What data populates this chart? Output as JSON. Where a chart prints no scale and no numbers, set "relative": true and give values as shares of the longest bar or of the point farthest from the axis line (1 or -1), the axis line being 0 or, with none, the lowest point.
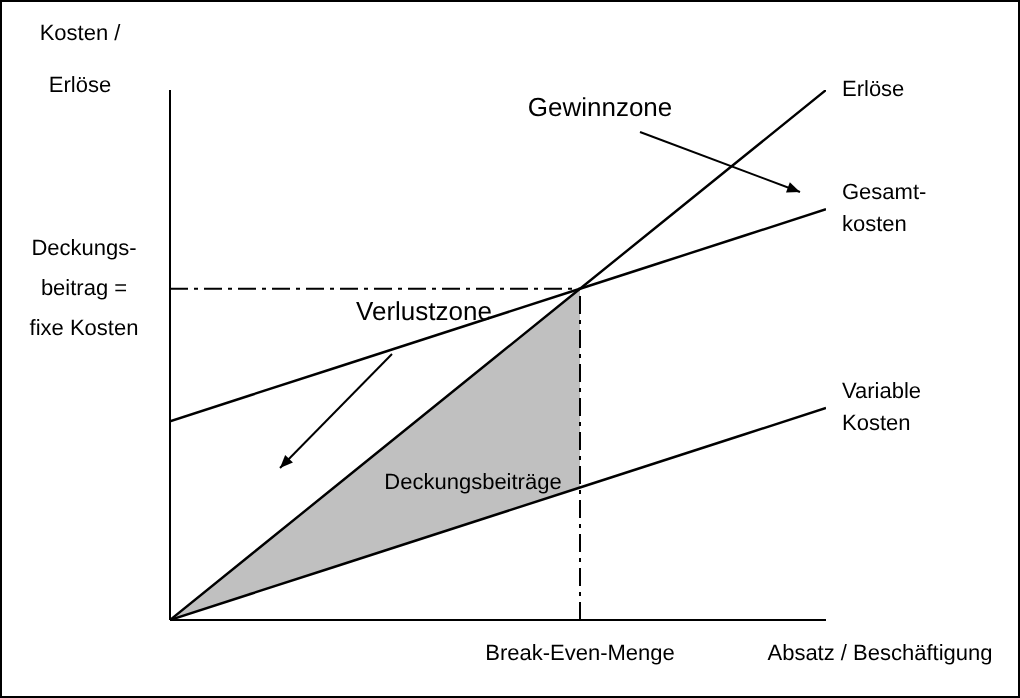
{
  "chart_data": {
    "type": "line",
    "relative": true,
    "ylabel": "Kosten / Erlöse",
    "xlabel": "Absatz / Beschäftigung",
    "categories": [
      null,
      null,
      null,
      null,
      null,
      null,
      null,
      null,
      null
    ],
    "marker": "none",
    "annotations": [
      "Gewinnzone",
      "Verlustzone",
      "Deckungsbeiträge",
      "Break-Even-Menge"
    ],
    "series": [
      {
        "name": "Erlöse",
        "color": "#000000",
        "values": [
          0,
          0.125,
          0.25,
          0.375,
          0.5,
          0.625,
          0.75,
          0.875,
          1
        ]
      },
      {
        "name": "Gesamt-kosten",
        "color": "#000000",
        "values": [
          0.375,
          0.425,
          0.475,
          0.525,
          0.575,
          0.625,
          0.675,
          0.725,
          0.775
        ]
      },
      {
        "name": "Variable Kosten",
        "color": "#000000",
        "values": [
          0,
          0.05,
          0.1,
          0.15,
          0.2,
          0.25,
          0.3,
          0.35,
          0.4
        ]
      }
    ],
    "ref_lines": [
      {
        "axis": "y",
        "value": 0.625,
        "label": "Deckungs-beitrag = fixe Kosten",
        "line_style": "dashed"
      }
    ]
  }
}
